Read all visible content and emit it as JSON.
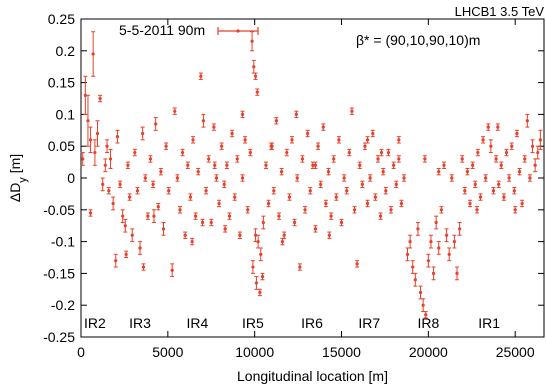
{
  "chart_data": {
    "type": "scatter",
    "title": "LHCB1 3.5 TeV",
    "annotation": "β* = (90,10,90,10)m",
    "xlabel": "Longitudinal location [m]",
    "ylabel": "ΔD",
    "ylabel_sub": "y",
    "ylabel_unit": " [m]",
    "xlim": [
      0,
      26659
    ],
    "ylim": [
      -0.25,
      0.25
    ],
    "xticks": [
      0,
      5000,
      10000,
      15000,
      20000,
      25000
    ],
    "yticks": [
      -0.25,
      -0.2,
      -0.15,
      -0.1,
      -0.05,
      0,
      0.05,
      0.1,
      0.15,
      0.2,
      0.25
    ],
    "xtick_labels": [
      "0",
      "5000",
      "10000",
      "15000",
      "20000",
      "25000"
    ],
    "ytick_labels": [
      "-0.25",
      "-0.2",
      "-0.15",
      "-0.1",
      "-0.05",
      "0",
      "0.05",
      "0.1",
      "0.15",
      "0.2",
      "0.25"
    ],
    "grid": false,
    "legend_position": "top-left",
    "series": [
      {
        "name": "5-5-2011 90m",
        "color": "#e8402a",
        "marker": "errorbar",
        "points": [
          [
            100,
            0.03,
            0.01
          ],
          [
            250,
            0.13,
            0.03
          ],
          [
            400,
            0.09,
            0.04
          ],
          [
            550,
            0.06,
            0.02
          ],
          [
            700,
            0.195,
            0.035
          ],
          [
            800,
            0.04,
            0.02
          ],
          [
            950,
            0.07,
            0.02
          ],
          [
            1100,
            0.125,
            0.005
          ],
          [
            1250,
            -0.01,
            0.01
          ],
          [
            1400,
            0.02,
            0.01
          ],
          [
            550,
            -0.055,
            0.005
          ],
          [
            1500,
            0.05,
            0.01
          ],
          [
            1700,
            0.03,
            0.015
          ],
          [
            1850,
            -0.04,
            0.01
          ],
          [
            2000,
            -0.13,
            0.01
          ],
          [
            2100,
            0.065,
            0.01
          ],
          [
            2250,
            -0.01,
            0.005
          ],
          [
            2400,
            -0.06,
            0.01
          ],
          [
            2550,
            -0.075,
            0.01
          ],
          [
            2700,
            0.02,
            0.005
          ],
          [
            2800,
            -0.03,
            0.005
          ],
          [
            2950,
            -0.09,
            0.01
          ],
          [
            3100,
            0.04,
            0.005
          ],
          [
            3250,
            -0.02,
            0.005
          ],
          [
            3400,
            -0.11,
            0.01
          ],
          [
            3550,
            0.07,
            0.01
          ],
          [
            3700,
            0.0,
            0.005
          ],
          [
            3850,
            -0.06,
            0.005
          ],
          [
            4000,
            0.03,
            0.005
          ],
          [
            4150,
            -0.01,
            0.005
          ],
          [
            4300,
            0.085,
            0.01
          ],
          [
            4450,
            -0.045,
            0.005
          ],
          [
            4600,
            0.01,
            0.005
          ],
          [
            4750,
            -0.08,
            0.01
          ],
          [
            4900,
            0.05,
            0.005
          ],
          [
            5050,
            -0.02,
            0.005
          ],
          [
            5250,
            -0.145,
            0.01
          ],
          [
            5400,
            0.105,
            0.005
          ],
          [
            5550,
            0.0,
            0.005
          ],
          [
            5700,
            -0.05,
            0.005
          ],
          [
            5850,
            0.04,
            0.005
          ],
          [
            6000,
            -0.09,
            0.005
          ],
          [
            6150,
            0.02,
            0.005
          ],
          [
            6300,
            -0.03,
            0.005
          ],
          [
            6450,
            0.06,
            0.005
          ],
          [
            6600,
            -0.06,
            0.005
          ],
          [
            6750,
            0.01,
            0.005
          ],
          [
            6900,
            0.16,
            0.005
          ],
          [
            7050,
            0.09,
            0.01
          ],
          [
            7200,
            -0.02,
            0.005
          ],
          [
            7350,
            0.03,
            0.005
          ],
          [
            7500,
            -0.07,
            0.005
          ],
          [
            7650,
            0.08,
            0.005
          ],
          [
            7800,
            0.0,
            0.005
          ],
          [
            7950,
            -0.04,
            0.005
          ],
          [
            8100,
            0.05,
            0.005
          ],
          [
            8250,
            -0.01,
            0.005
          ],
          [
            8400,
            0.02,
            0.005
          ],
          [
            8550,
            -0.06,
            0.005
          ],
          [
            8700,
            0.07,
            0.005
          ],
          [
            8850,
            -0.03,
            0.005
          ],
          [
            9000,
            0.03,
            0.005
          ],
          [
            9150,
            -0.09,
            0.005
          ],
          [
            9300,
            0.0,
            0.005
          ],
          [
            9450,
            0.06,
            0.005
          ],
          [
            9600,
            -0.05,
            0.005
          ],
          [
            9750,
            0.04,
            0.005
          ],
          [
            9850,
            0.215,
            0.015
          ],
          [
            9950,
            0.175,
            0.01
          ],
          [
            10050,
            0.16,
            0.005
          ],
          [
            10150,
            0.135,
            0.005
          ],
          [
            10050,
            -0.09,
            0.01
          ],
          [
            10200,
            -0.1,
            0.01
          ],
          [
            10350,
            -0.12,
            0.01
          ],
          [
            10500,
            -0.07,
            0.01
          ],
          [
            9900,
            -0.14,
            0.01
          ],
          [
            10100,
            -0.165,
            0.01
          ],
          [
            10300,
            -0.18,
            0.005
          ],
          [
            10450,
            -0.155,
            0.005
          ],
          [
            10650,
            0.02,
            0.005
          ],
          [
            10800,
            -0.04,
            0.005
          ],
          [
            10950,
            0.05,
            0.005
          ],
          [
            11100,
            -0.02,
            0.005
          ],
          [
            11250,
            0.09,
            0.005
          ],
          [
            11400,
            -0.06,
            0.005
          ],
          [
            11550,
            0.01,
            0.005
          ],
          [
            11700,
            -0.09,
            0.005
          ],
          [
            11850,
            0.04,
            0.005
          ],
          [
            12000,
            -0.03,
            0.005
          ],
          [
            12150,
            0.06,
            0.005
          ],
          [
            12300,
            -0.07,
            0.005
          ],
          [
            12450,
            0.0,
            0.005
          ],
          [
            12600,
            -0.14,
            0.005
          ],
          [
            12750,
            0.03,
            0.005
          ],
          [
            12900,
            -0.05,
            0.005
          ],
          [
            13050,
            0.07,
            0.005
          ],
          [
            13200,
            -0.02,
            0.005
          ],
          [
            13350,
            0.02,
            0.005
          ],
          [
            13500,
            -0.08,
            0.005
          ],
          [
            13650,
            0.05,
            0.005
          ],
          [
            13800,
            -0.01,
            0.005
          ],
          [
            13950,
            0.08,
            0.005
          ],
          [
            14100,
            -0.04,
            0.005
          ],
          [
            14250,
            0.01,
            0.005
          ],
          [
            14400,
            -0.06,
            0.005
          ],
          [
            14550,
            0.03,
            0.005
          ],
          [
            14700,
            -0.03,
            0.005
          ],
          [
            14850,
            0.06,
            0.005
          ],
          [
            15000,
            -0.07,
            0.005
          ],
          [
            15150,
            0.0,
            0.005
          ],
          [
            15300,
            -0.02,
            0.005
          ],
          [
            15450,
            0.04,
            0.005
          ],
          [
            15600,
            0.105,
            0.005
          ],
          [
            15750,
            -0.05,
            0.005
          ],
          [
            15900,
            -0.135,
            0.005
          ],
          [
            16050,
            0.02,
            0.005
          ],
          [
            16200,
            -0.01,
            0.005
          ],
          [
            16350,
            0.05,
            0.005
          ],
          [
            16500,
            -0.04,
            0.005
          ],
          [
            16650,
            0.0,
            0.005
          ],
          [
            16800,
            0.07,
            0.005
          ],
          [
            16950,
            -0.03,
            0.005
          ],
          [
            17100,
            0.03,
            0.005
          ],
          [
            17250,
            -0.06,
            0.005
          ],
          [
            17400,
            0.01,
            0.005
          ],
          [
            17550,
            -0.02,
            0.005
          ],
          [
            17700,
            0.04,
            0.005
          ],
          [
            17850,
            -0.05,
            0.005
          ],
          [
            18000,
            0.02,
            0.005
          ],
          [
            18150,
            -0.01,
            0.005
          ],
          [
            18300,
            0.03,
            0.005
          ],
          [
            18450,
            -0.04,
            0.005
          ],
          [
            18600,
            0.0,
            0.005
          ],
          [
            18800,
            -0.12,
            0.01
          ],
          [
            18950,
            -0.1,
            0.01
          ],
          [
            19100,
            -0.14,
            0.01
          ],
          [
            19250,
            -0.16,
            0.01
          ],
          [
            19400,
            -0.08,
            0.01
          ],
          [
            19550,
            -0.18,
            0.01
          ],
          [
            19700,
            -0.2,
            0.01
          ],
          [
            19850,
            -0.215,
            0.005
          ],
          [
            20000,
            -0.13,
            0.01
          ],
          [
            20150,
            -0.1,
            0.01
          ],
          [
            20300,
            -0.15,
            0.01
          ],
          [
            20450,
            -0.07,
            0.01
          ],
          [
            20600,
            -0.11,
            0.01
          ],
          [
            20750,
            -0.05,
            0.005
          ],
          [
            20900,
            0.02,
            0.005
          ],
          [
            21050,
            -0.09,
            0.01
          ],
          [
            21200,
            -0.12,
            0.01
          ],
          [
            21350,
            0.0,
            0.005
          ],
          [
            21500,
            -0.1,
            0.01
          ],
          [
            21650,
            -0.15,
            0.01
          ],
          [
            21800,
            -0.08,
            0.01
          ],
          [
            21950,
            0.03,
            0.005
          ],
          [
            22100,
            -0.02,
            0.005
          ],
          [
            22250,
            0.01,
            0.005
          ],
          [
            22400,
            -0.04,
            0.005
          ],
          [
            22550,
            0.02,
            0.005
          ],
          [
            22700,
            -0.01,
            0.005
          ],
          [
            22850,
            0.04,
            0.005
          ],
          [
            23000,
            -0.03,
            0.005
          ],
          [
            23150,
            0.06,
            0.005
          ],
          [
            23300,
            0.0,
            0.005
          ],
          [
            23450,
            0.08,
            0.005
          ],
          [
            23600,
            0.05,
            0.01
          ],
          [
            23750,
            -0.02,
            0.005
          ],
          [
            23900,
            0.03,
            0.005
          ],
          [
            24050,
            -0.01,
            0.005
          ],
          [
            24200,
            0.02,
            0.005
          ],
          [
            24350,
            -0.03,
            0.005
          ],
          [
            24500,
            0.04,
            0.005
          ],
          [
            24650,
            0.0,
            0.005
          ],
          [
            24800,
            0.05,
            0.005
          ],
          [
            24950,
            -0.02,
            0.005
          ],
          [
            25100,
            0.07,
            0.005
          ],
          [
            25250,
            0.01,
            0.005
          ],
          [
            25400,
            -0.04,
            0.005
          ],
          [
            25550,
            0.03,
            0.005
          ],
          [
            25700,
            0.09,
            0.01
          ],
          [
            25850,
            0.0,
            0.005
          ],
          [
            26000,
            0.05,
            0.01
          ],
          [
            26150,
            0.02,
            0.01
          ],
          [
            26300,
            0.04,
            0.01
          ],
          [
            26450,
            0.06,
            0.015
          ],
          [
            1600,
            -0.02,
            0.005
          ],
          [
            2600,
            -0.12,
            0.005
          ],
          [
            3600,
            -0.14,
            0.005
          ],
          [
            4200,
            -0.06,
            0.01
          ],
          [
            6400,
            -0.1,
            0.005
          ],
          [
            7000,
            -0.07,
            0.005
          ],
          [
            7700,
            0.02,
            0.005
          ],
          [
            8300,
            -0.08,
            0.005
          ],
          [
            9300,
            0.1,
            0.005
          ],
          [
            11000,
            0.05,
            0.005
          ],
          [
            11600,
            -0.1,
            0.005
          ],
          [
            12400,
            0.1,
            0.005
          ],
          [
            13500,
            0.02,
            0.005
          ],
          [
            14300,
            -0.09,
            0.005
          ],
          [
            16500,
            0.06,
            0.005
          ],
          [
            17300,
            0.04,
            0.005
          ],
          [
            18300,
            0.06,
            0.005
          ],
          [
            19800,
            0.03,
            0.005
          ],
          [
            20600,
            0.01,
            0.005
          ],
          [
            22800,
            -0.05,
            0.005
          ],
          [
            24000,
            0.08,
            0.005
          ],
          [
            25000,
            -0.05,
            0.005
          ]
        ]
      }
    ],
    "ir_labels": [
      {
        "label": "IR2",
        "x": 800
      },
      {
        "label": "IR3",
        "x": 3400
      },
      {
        "label": "IR4",
        "x": 6700
      },
      {
        "label": "IR5",
        "x": 9900
      },
      {
        "label": "IR6",
        "x": 13300
      },
      {
        "label": "IR7",
        "x": 16600
      },
      {
        "label": "IR8",
        "x": 20000
      },
      {
        "label": "IR1",
        "x": 23500
      }
    ]
  }
}
